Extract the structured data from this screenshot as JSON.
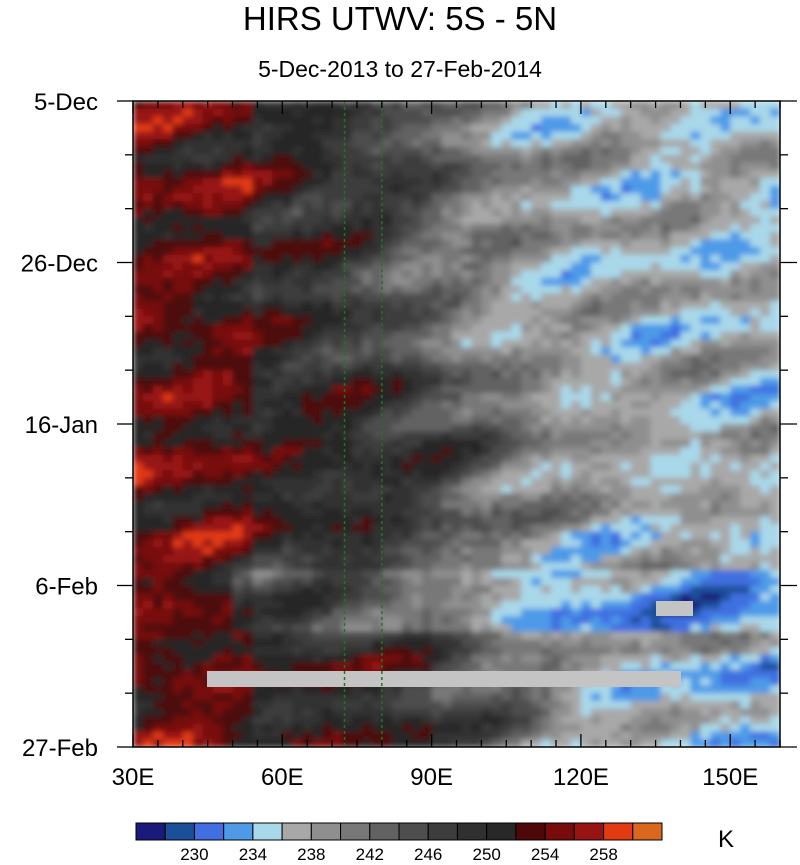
{
  "chart_data": {
    "type": "heatmap",
    "title": "HIRS UTWV: 5S - 5N",
    "subtitle": "5-Dec-2013 to 27-Feb-2014",
    "x_axis": {
      "range": [
        30,
        160
      ],
      "ticks": [
        30,
        60,
        90,
        120,
        150
      ],
      "tick_labels": [
        "30E",
        "60E",
        "90E",
        "120E",
        "150E"
      ]
    },
    "y_axis": {
      "range": [
        "2013-12-05",
        "2014-02-27"
      ],
      "reversed": true,
      "ticks": [
        "2013-12-05",
        "2013-12-26",
        "2014-01-16",
        "2014-02-06",
        "2014-02-27"
      ],
      "tick_labels": [
        "5-Dec",
        "26-Dec",
        "16-Jan",
        "6-Feb",
        "27-Feb"
      ]
    },
    "reference_lines_lon": [
      72.5,
      80
    ],
    "colorbar": {
      "unit": "K",
      "levels": [
        228,
        230,
        232,
        234,
        236,
        238,
        240,
        242,
        244,
        246,
        248,
        250,
        252,
        254,
        256,
        258,
        260
      ],
      "labeled_levels": [
        "230",
        "234",
        "238",
        "242",
        "246",
        "250",
        "254",
        "258"
      ],
      "colors": [
        "#1a1a7a",
        "#1c4f9a",
        "#3f6fe0",
        "#4e9ae8",
        "#a9d8ea",
        "#a8a8a8",
        "#8f8f8f",
        "#787878",
        "#626262",
        "#4e4e4e",
        "#3d3d3d",
        "#303030",
        "#282828",
        "#4e0808",
        "#780c0c",
        "#981414",
        "#e23a12",
        "#d9681e"
      ]
    }
  }
}
